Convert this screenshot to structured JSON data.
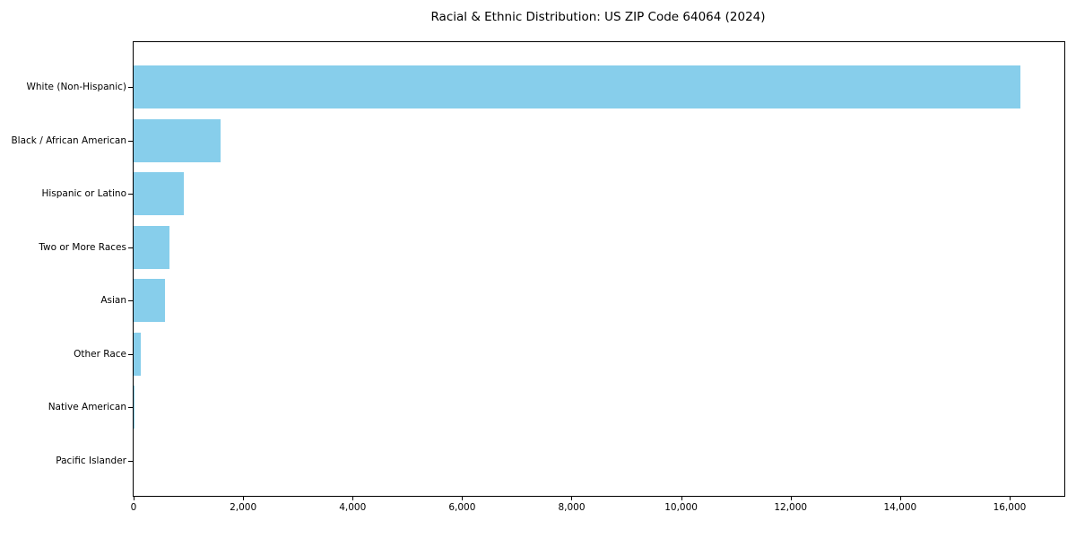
{
  "title": "Racial & Ethnic Distribution: US ZIP Code 64064 (2024)",
  "colors": {
    "bar": "#87CEEB",
    "axis": "#000000",
    "text": "#000000",
    "background": "#FFFFFF"
  },
  "chart_data": {
    "type": "bar",
    "orientation": "horizontal",
    "title": "Racial & Ethnic Distribution: US ZIP Code 64064 (2024)",
    "categories": [
      "White (Non-Hispanic)",
      "Black / African American",
      "Hispanic or Latino",
      "Two or More Races",
      "Asian",
      "Other Race",
      "Native American",
      "Pacific Islander"
    ],
    "values": [
      16200,
      1590,
      920,
      660,
      580,
      135,
      20,
      0
    ],
    "xlabel": "",
    "ylabel": "",
    "xlim": [
      0,
      17000
    ],
    "xticks": [
      0,
      2000,
      4000,
      6000,
      8000,
      10000,
      12000,
      14000,
      16000
    ],
    "xtick_labels": [
      "0",
      "2,000",
      "4,000",
      "6,000",
      "8,000",
      "10,000",
      "12,000",
      "14,000",
      "16,000"
    ],
    "grid": false,
    "legend": null,
    "bar_color": "#87CEEB"
  }
}
